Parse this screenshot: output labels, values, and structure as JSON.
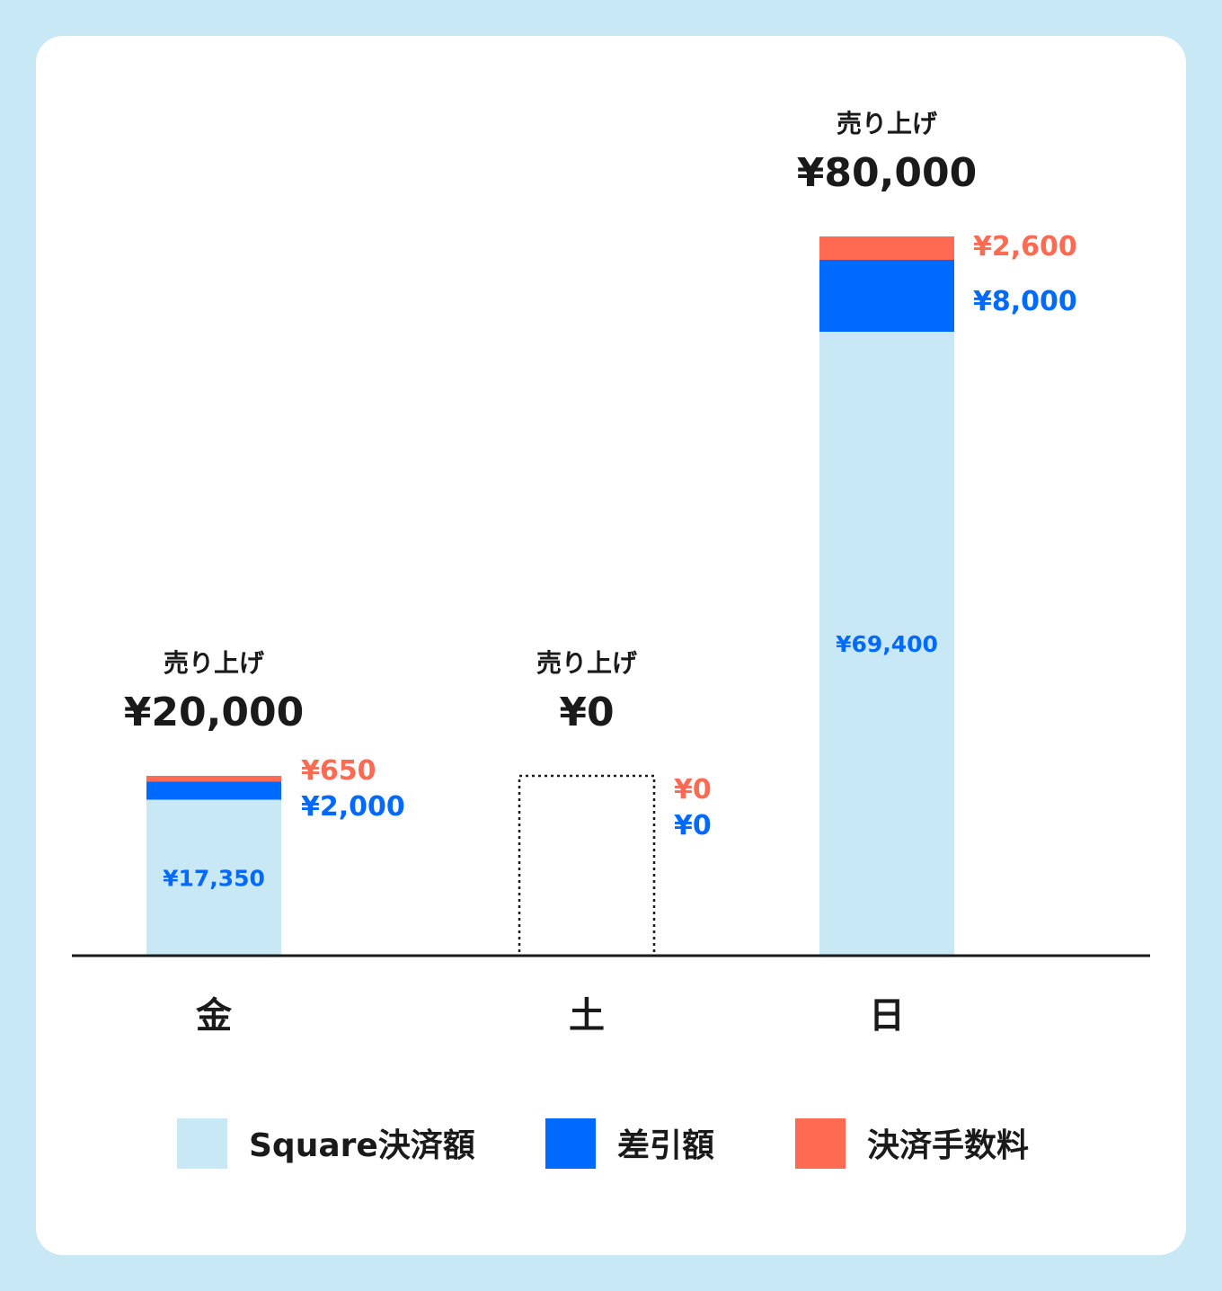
{
  "chart_data": {
    "type": "bar",
    "stacked": true,
    "categories": [
      "金",
      "土",
      "日"
    ],
    "series": [
      {
        "name": "Square決済額",
        "color": "#c9e8f5",
        "values": [
          17350,
          0,
          69400
        ],
        "labels": [
          "¥17,350",
          "",
          "¥69,400"
        ],
        "text_color": "#006aff"
      },
      {
        "name": "差引額",
        "color": "#006aff",
        "values": [
          2000,
          0,
          8000
        ],
        "labels": [
          "¥2,000",
          "¥0",
          "¥8,000"
        ],
        "text_color": "#006aff"
      },
      {
        "name": "決済手数料",
        "color": "#ff6a52",
        "values": [
          650,
          0,
          2600
        ],
        "labels": [
          "¥650",
          "¥0",
          "¥2,600"
        ],
        "text_color": "#ff6a52"
      }
    ],
    "totals": {
      "heading": "売り上げ",
      "values": [
        20000,
        0,
        80000
      ],
      "labels": [
        "¥20,000",
        "¥0",
        "¥80,000"
      ]
    },
    "empty_bar_style": "dotted-outline",
    "legend_position": "bottom",
    "grid": false
  }
}
